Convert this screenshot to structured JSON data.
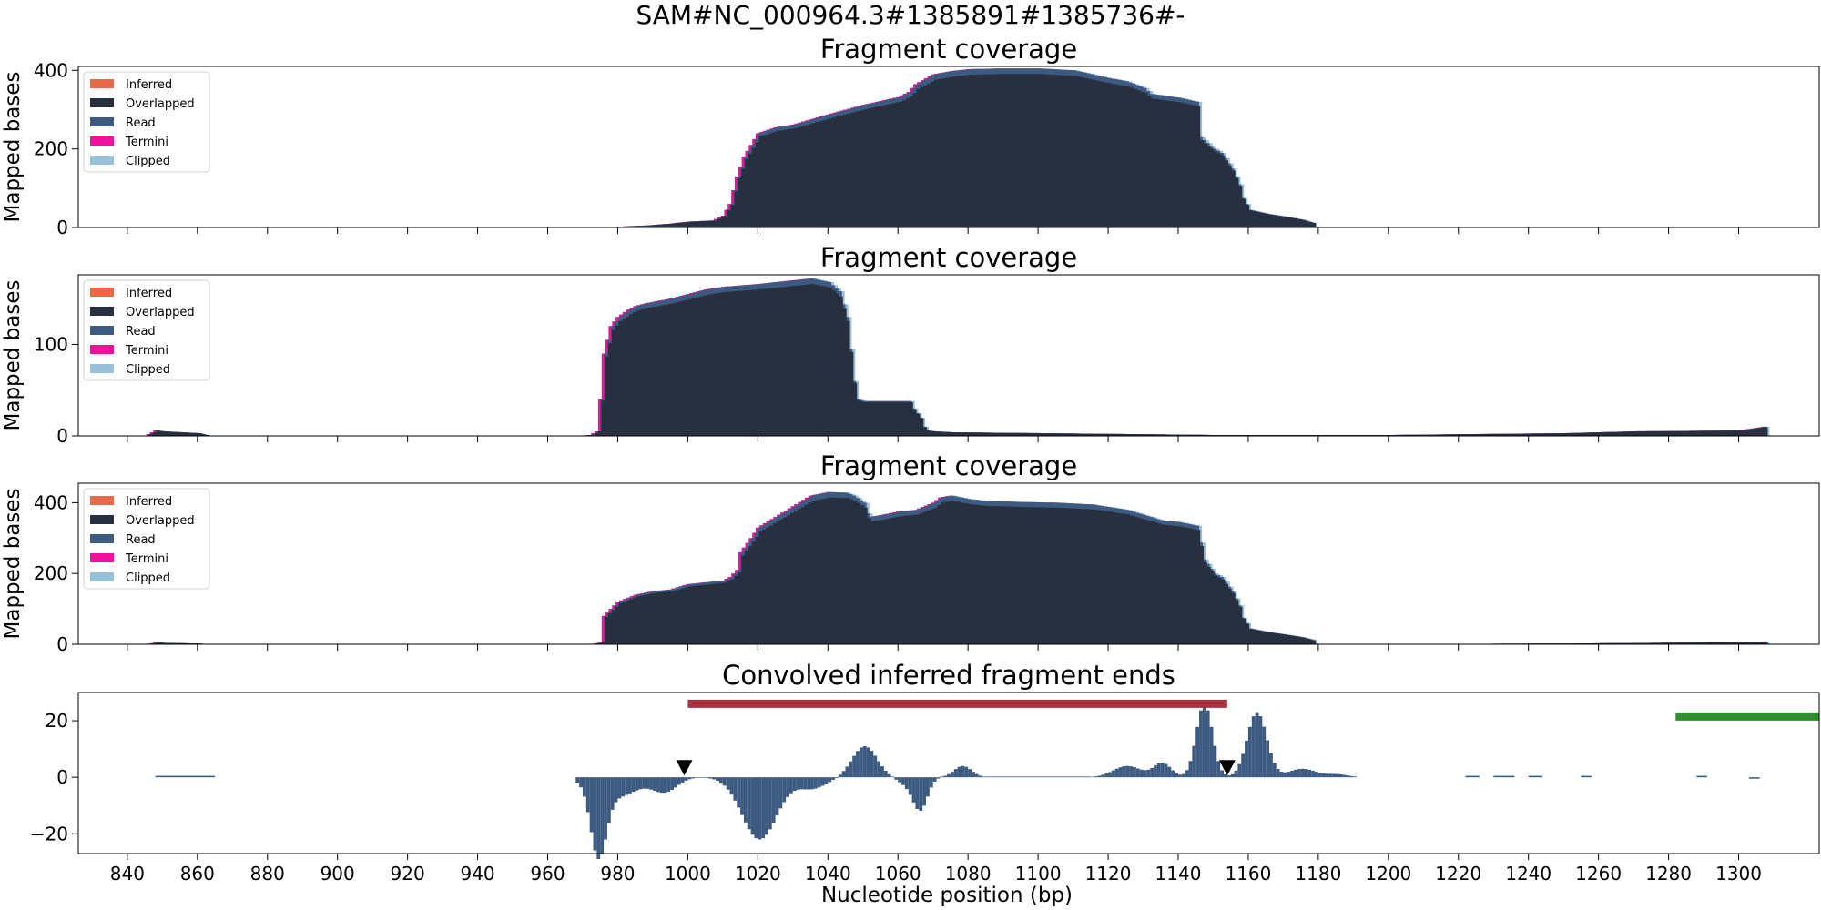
{
  "figure": {
    "suptitle": "SAM#NC_000964.3#1385891#1385736#-",
    "xlabel": "Nucleotide position (bp)",
    "ylabel": "Mapped bases",
    "xticks": [
      840,
      860,
      880,
      900,
      920,
      940,
      960,
      980,
      1000,
      1020,
      1040,
      1060,
      1080,
      1100,
      1120,
      1140,
      1160,
      1180,
      1200,
      1220,
      1240,
      1260,
      1280,
      1300
    ],
    "xlim": [
      826,
      1323
    ]
  },
  "legend": [
    {
      "label": "Inferred",
      "color": "#e8694a"
    },
    {
      "label": "Overlapped",
      "color": "#282f3f"
    },
    {
      "label": "Read",
      "color": "#3d5a80"
    },
    {
      "label": "Termini",
      "color": "#ee1199"
    },
    {
      "label": "Clipped",
      "color": "#98c1d9"
    }
  ],
  "chart_data": [
    {
      "type": "area",
      "title": "Fragment coverage",
      "ylabel": "Mapped bases",
      "ylim": [
        0,
        410
      ],
      "yticks": [
        0,
        200,
        400
      ],
      "series_profile": {
        "x": [
          982,
          988,
          995,
          1000,
          1007,
          1010,
          1012,
          1014,
          1016,
          1018,
          1020,
          1025,
          1030,
          1035,
          1040,
          1045,
          1050,
          1055,
          1060,
          1063,
          1065,
          1068,
          1070,
          1075,
          1080,
          1090,
          1100,
          1110,
          1115,
          1120,
          1125,
          1130,
          1132,
          1140,
          1145,
          1146,
          1150,
          1152,
          1155,
          1157,
          1158,
          1160,
          1165,
          1170,
          1175,
          1178,
          1179
        ],
        "y": [
          3,
          5,
          10,
          15,
          18,
          30,
          60,
          130,
          180,
          210,
          240,
          255,
          262,
          275,
          288,
          300,
          312,
          322,
          332,
          345,
          365,
          380,
          390,
          398,
          403,
          405,
          405,
          400,
          390,
          380,
          372,
          355,
          340,
          330,
          320,
          230,
          200,
          190,
          150,
          110,
          75,
          45,
          35,
          28,
          20,
          12,
          0
        ]
      }
    },
    {
      "type": "area",
      "title": "Fragment coverage",
      "ylabel": "Mapped bases",
      "ylim": [
        0,
        176
      ],
      "yticks": [
        0,
        100
      ],
      "series_profile": {
        "x": [
          845,
          848,
          850,
          855,
          860,
          863,
          968,
          972,
          974,
          975,
          976,
          977,
          978,
          980,
          983,
          985,
          988,
          995,
          1000,
          1005,
          1010,
          1020,
          1030,
          1035,
          1040,
          1043,
          1045,
          1047,
          1048,
          1050,
          1055,
          1063,
          1064,
          1066,
          1067,
          1068,
          1070,
          1075,
          1100,
          1150,
          1200,
          1250,
          1270,
          1300,
          1307,
          1308
        ],
        "y": [
          0,
          6,
          5,
          4,
          3,
          0,
          0,
          1,
          5,
          40,
          90,
          105,
          120,
          130,
          138,
          142,
          145,
          150,
          155,
          160,
          163,
          166,
          170,
          172,
          168,
          158,
          130,
          60,
          40,
          38,
          38,
          38,
          30,
          20,
          10,
          6,
          5,
          4,
          3,
          1,
          1,
          3,
          5,
          6,
          10,
          0
        ]
      }
    },
    {
      "type": "area",
      "title": "Fragment coverage",
      "ylabel": "Mapped bases",
      "ylim": [
        0,
        455
      ],
      "yticks": [
        0,
        200,
        400
      ],
      "series_profile": {
        "x": [
          845,
          848,
          850,
          855,
          860,
          863,
          972,
          975,
          976,
          978,
          980,
          985,
          990,
          995,
          1000,
          1005,
          1010,
          1012,
          1014,
          1015,
          1018,
          1020,
          1025,
          1030,
          1035,
          1040,
          1045,
          1047,
          1050,
          1051,
          1052,
          1055,
          1060,
          1065,
          1070,
          1072,
          1075,
          1080,
          1085,
          1095,
          1105,
          1115,
          1125,
          1130,
          1135,
          1140,
          1145,
          1147,
          1150,
          1152,
          1155,
          1157,
          1158,
          1160,
          1165,
          1170,
          1175,
          1178,
          1179,
          1250,
          1300,
          1307,
          1308
        ],
        "y": [
          0,
          5,
          4,
          3,
          2,
          0,
          0,
          5,
          80,
          100,
          120,
          140,
          150,
          155,
          170,
          175,
          180,
          190,
          210,
          260,
          300,
          330,
          360,
          390,
          420,
          430,
          428,
          420,
          400,
          370,
          360,
          365,
          375,
          380,
          400,
          415,
          420,
          410,
          405,
          402,
          400,
          395,
          380,
          365,
          350,
          345,
          335,
          240,
          200,
          190,
          150,
          110,
          75,
          45,
          35,
          28,
          20,
          12,
          0,
          2,
          6,
          8,
          0
        ]
      }
    },
    {
      "type": "bar",
      "title": "Convolved inferred fragment ends",
      "ylim": [
        -27,
        30
      ],
      "yticks": [
        -20,
        0,
        20
      ],
      "xlim": [
        826,
        1323
      ],
      "segments": [
        {
          "x0": 1000,
          "x1": 1154,
          "y": 26,
          "color": "#a83240"
        },
        {
          "x0": 1282,
          "x1": 1323,
          "y": 21.5,
          "color": "#2f8f2f"
        }
      ],
      "markers": [
        {
          "x": 999,
          "y": 3.5
        },
        {
          "x": 1154,
          "y": 3.5
        }
      ],
      "peaks": [
        {
          "x": 974,
          "v": -24,
          "w": 2.2
        },
        {
          "x": 979,
          "v": -7,
          "w": 6
        },
        {
          "x": 993,
          "v": -5,
          "w": 3.5
        },
        {
          "x": 1020,
          "v": -22,
          "w": 5
        },
        {
          "x": 1035,
          "v": -4,
          "w": 4
        },
        {
          "x": 1050,
          "v": 11,
          "w": 3.5
        },
        {
          "x": 1063,
          "v": -3,
          "w": 3
        },
        {
          "x": 1066,
          "v": -10,
          "w": 2
        },
        {
          "x": 1078,
          "v": 4,
          "w": 2.5
        },
        {
          "x": 1125,
          "v": 4,
          "w": 4
        },
        {
          "x": 1135,
          "v": 5,
          "w": 2.5
        },
        {
          "x": 1147,
          "v": 26,
          "w": 2.3
        },
        {
          "x": 1162,
          "v": 23,
          "w": 2.8
        },
        {
          "x": 1175,
          "v": 3,
          "w": 4
        },
        {
          "x": 1185,
          "v": 1,
          "w": 3
        }
      ],
      "flat_segments": [
        [
          848,
          865,
          0.5
        ],
        [
          1222,
          1226,
          0.5
        ],
        [
          1230,
          1236,
          0.5
        ],
        [
          1240,
          1244,
          0.5
        ],
        [
          1255,
          1258,
          0.5
        ],
        [
          1288,
          1291,
          0.5
        ],
        [
          1303,
          1306,
          -0.5
        ]
      ]
    }
  ]
}
